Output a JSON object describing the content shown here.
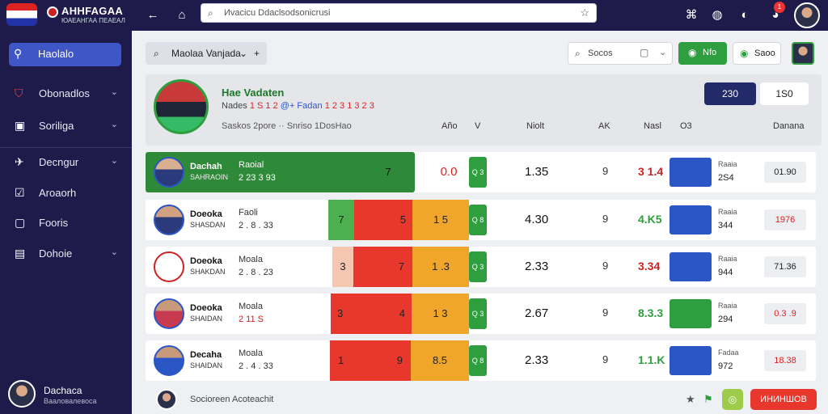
{
  "app": {
    "title": "AHHFAGAA",
    "subtitle": "ЮАЕАНГАА ПЕАЕАЛ"
  },
  "topbar": {
    "search_placeholder": "Иvacicu Ddaclsodsonicrusi",
    "badge_count": "1"
  },
  "sidebar": {
    "items": [
      {
        "label": "Haolalo",
        "icon": "search-icon"
      },
      {
        "label": "Obonadlos",
        "icon": "shield-icon"
      },
      {
        "label": "Soriliga",
        "icon": "bag-icon"
      },
      {
        "label": "Decngur",
        "icon": "bird-icon"
      },
      {
        "label": "Aroaorh",
        "icon": "check-box-icon"
      },
      {
        "label": "Fooris",
        "icon": "square-icon"
      },
      {
        "label": "Dohoie",
        "icon": "briefcase-icon"
      }
    ],
    "user": {
      "name": "Dachaca",
      "role": "Вааловалевоса"
    }
  },
  "toolbar": {
    "filter_label": "Maolaa Vanjada",
    "sort_label": "Socos",
    "btn_green": "Nfo",
    "btn_save": "Saoo"
  },
  "hero": {
    "title": "Hae Vadaten",
    "sub_a": "Nades",
    "sub_b": "1 S 1 2",
    "sub_c": "@+ Fadan",
    "sub_d": "1 2 3 1 3 2 3",
    "cols": "Saskos 2pore ·· Snriso 1DosHao",
    "stat1": "230",
    "stat2": "1S0",
    "headers": {
      "h1": "Año",
      "h2": "V",
      "h3": "Niolt",
      "h4": "AK",
      "h5": "Nasl",
      "h6": "O3",
      "h7": "Danana"
    }
  },
  "rows": [
    {
      "name": "Dachah",
      "team": "SAHRAOIN",
      "meta1": "Raoial",
      "meta2": "2 23 3 93",
      "seg1": "7",
      "seg2": "0.0",
      "tag": "Q 3",
      "val": "1.35",
      "small": "9",
      "val2": "3 1.4",
      "crest_label": "Raaia",
      "crest_val": "2S4",
      "pill": "01.90"
    },
    {
      "name": "Doeoka",
      "team": "SHASDAN",
      "meta1": "Faoli",
      "meta2": "2 . 8 . 33",
      "seg1": "7",
      "seg2": "5",
      "seg3": "1 5",
      "tag": "Q 8",
      "val": "4.30",
      "small": "9",
      "val2": "4.K5",
      "crest_label": "Raaia",
      "crest_val": "344",
      "pill": "1976"
    },
    {
      "name": "Doeoka",
      "team": "SHAKDAN",
      "meta1": "Moala",
      "meta2": "2 . 8 . 23",
      "seg1": "3",
      "seg2": "7",
      "seg3": "1 .3",
      "tag": "Q 3",
      "val": "2.33",
      "small": "9",
      "val2": "3.34",
      "crest_label": "Raaia",
      "crest_val": "944",
      "pill": "71.36"
    },
    {
      "name": "Doeoka",
      "team": "SHAIDAN",
      "meta1": "Moala",
      "meta2": "2 11 S",
      "seg1": "3",
      "seg2": "4",
      "seg3": "1 3",
      "tag": "Q 3",
      "val": "2.67",
      "small": "9",
      "val2": "8.3.3",
      "crest_label": "Raaia",
      "crest_val": "294",
      "pill": "0.3 .9"
    },
    {
      "name": "Decaha",
      "team": "SHAIDAN",
      "meta1": "Moala",
      "meta2": "2 . 4 . 33",
      "seg1": "1",
      "seg2": "9",
      "seg3": "8.5",
      "tag": "Q 8",
      "val": "2.33",
      "small": "9",
      "val2": "1.1.K",
      "crest_label": "Fadaa",
      "crest_val": "972",
      "pill": "18.38"
    }
  ],
  "footer": {
    "text": "Socioreen Acoteachit",
    "cta": "ИНИНШОВ"
  },
  "colors": {
    "nav": "#1e1b4b",
    "accent": "#3e56c6",
    "green": "#2e9e3e",
    "red": "#e8382e",
    "orange": "#f0a62a"
  }
}
